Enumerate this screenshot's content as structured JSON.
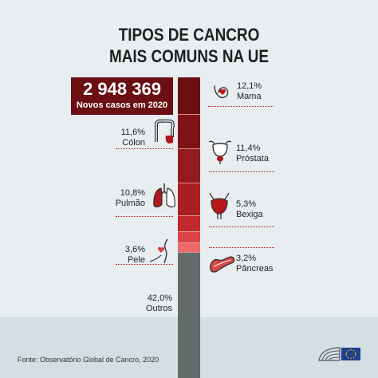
{
  "title": {
    "line1": "TIPOS DE CANCRO",
    "line2": "MAIS COMUNS NA UE"
  },
  "total": {
    "value": "2 948 369",
    "label": "Novos casos em 2020"
  },
  "source": "Fonte: Observatório Global de Cancro, 2020",
  "icons": {
    "mama": "breast-icon",
    "colon": "colon-icon",
    "prostata": "prostate-icon",
    "pulmao": "lungs-icon",
    "bexiga": "bladder-icon",
    "pele": "skin-icon",
    "pancreas": "pancreas-icon",
    "logo": "european-parliament-logo"
  },
  "colors": {
    "dark_red": "#6b0f12",
    "mama": "#6b0f12",
    "colon": "#7d1316",
    "prostata": "#931a1d",
    "pulmao": "#a81f22",
    "bexiga": "#bf2a2c",
    "pele": "#d94545",
    "pancreas": "#ec6a6a",
    "outros": "#636c6b"
  },
  "chart_data": {
    "type": "stacked-bar",
    "total_cases": "2 948 369",
    "unit": "%",
    "segments": [
      {
        "key": "mama",
        "label": "Mama",
        "value": 12.1,
        "value_label": "12,1%",
        "color": "#6b0f12",
        "side": "right"
      },
      {
        "key": "colon",
        "label": "Cólon",
        "value": 11.6,
        "value_label": "11,6%",
        "color": "#7d1316",
        "side": "left"
      },
      {
        "key": "prostata",
        "label": "Próstata",
        "value": 11.4,
        "value_label": "11,4%",
        "color": "#931a1d",
        "side": "right"
      },
      {
        "key": "pulmao",
        "label": "Pulmão",
        "value": 10.8,
        "value_label": "10,8%",
        "color": "#a81f22",
        "side": "left"
      },
      {
        "key": "bexiga",
        "label": "Bexiga",
        "value": 5.3,
        "value_label": "5,3%",
        "color": "#bf2a2c",
        "side": "right"
      },
      {
        "key": "pele",
        "label": "Pele",
        "value": 3.6,
        "value_label": "3,6%",
        "color": "#d94545",
        "side": "left"
      },
      {
        "key": "pancreas",
        "label": "Pâncreas",
        "value": 3.2,
        "value_label": "3,2%",
        "color": "#ec6a6a",
        "side": "right"
      },
      {
        "key": "outros",
        "label": "Outros",
        "value": 42.0,
        "value_label": "42,0%",
        "color": "#636c6b",
        "side": "left"
      }
    ]
  }
}
